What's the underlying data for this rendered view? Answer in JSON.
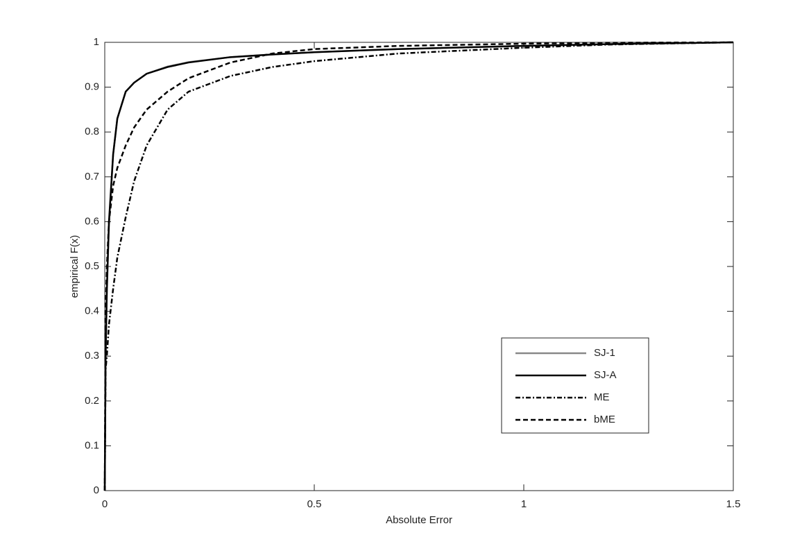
{
  "chart_data": {
    "type": "line",
    "xlabel": "Absolute Error",
    "ylabel": "empirical F(x)",
    "x": [
      0,
      0.002,
      0.005,
      0.01,
      0.02,
      0.03,
      0.05,
      0.07,
      0.1,
      0.15,
      0.2,
      0.3,
      0.4,
      0.5,
      0.7,
      1.0,
      1.2,
      1.5
    ],
    "series": [
      {
        "name": "SJ-1",
        "color": "#888888",
        "dash": "solid",
        "values": [
          0,
          0.29,
          0.44,
          0.59,
          0.75,
          0.83,
          0.89,
          0.91,
          0.93,
          0.946,
          0.956,
          0.967,
          0.973,
          0.978,
          0.985,
          0.992,
          0.996,
          1
        ]
      },
      {
        "name": "SJ-A",
        "color": "#000000",
        "dash": "solid",
        "values": [
          0,
          0.3,
          0.45,
          0.6,
          0.75,
          0.83,
          0.89,
          0.91,
          0.93,
          0.945,
          0.955,
          0.967,
          0.973,
          0.978,
          0.985,
          0.992,
          0.996,
          1
        ]
      },
      {
        "name": "ME",
        "color": "#000000",
        "dash": "dashdot",
        "values": [
          0,
          0.27,
          0.3,
          0.37,
          0.45,
          0.52,
          0.61,
          0.69,
          0.77,
          0.85,
          0.89,
          0.925,
          0.945,
          0.958,
          0.975,
          0.988,
          0.995,
          1
        ]
      },
      {
        "name": "bME",
        "color": "#000000",
        "dash": "dashed",
        "values": [
          0,
          0.4,
          0.5,
          0.6,
          0.68,
          0.72,
          0.77,
          0.81,
          0.85,
          0.89,
          0.92,
          0.955,
          0.975,
          0.985,
          0.992,
          0.997,
          0.999,
          1
        ]
      }
    ],
    "xlim": [
      0,
      1.5
    ],
    "xticks": [
      0,
      0.5,
      1,
      1.5
    ],
    "ylim": [
      0,
      1
    ],
    "yticks": [
      0,
      0.1,
      0.2,
      0.3,
      0.4,
      0.5,
      0.6,
      0.7,
      0.8,
      0.9,
      1
    ],
    "grid": false,
    "legend": "lower right"
  }
}
